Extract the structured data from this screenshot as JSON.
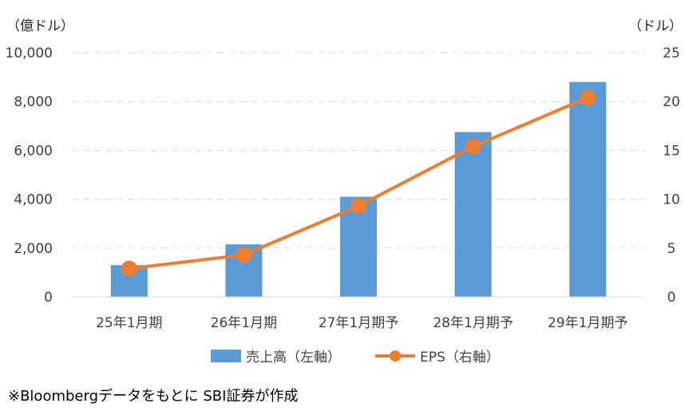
{
  "chart_data": {
    "type": "bar+line",
    "categories": [
      "25年1月期",
      "26年1月期",
      "27年1月期予",
      "28年1月期予",
      "29年1月期予"
    ],
    "series": [
      {
        "name": "売上高（左軸）",
        "type": "bar",
        "axis": "left",
        "color": "#5B9BD5",
        "values": [
          1300,
          2150,
          4100,
          6750,
          8800
        ]
      },
      {
        "name": "EPS（右軸）",
        "type": "line",
        "axis": "right",
        "color": "#ED7D31",
        "values": [
          2.9,
          4.3,
          9.3,
          15.4,
          20.4
        ]
      }
    ],
    "left_axis": {
      "unit_label": "（億ドル）",
      "min": 0,
      "max": 10000,
      "ticks": [
        "0",
        "2,000",
        "4,000",
        "6,000",
        "8,000",
        "10,000"
      ]
    },
    "right_axis": {
      "unit_label": "（ドル）",
      "min": 0,
      "max": 25,
      "ticks": [
        "0",
        "5",
        "10",
        "15",
        "20",
        "25"
      ]
    },
    "grid": "horizontal dashed",
    "legend_position": "bottom"
  },
  "source_note": "※Bloombergデータをもとに SBI証券が作成"
}
